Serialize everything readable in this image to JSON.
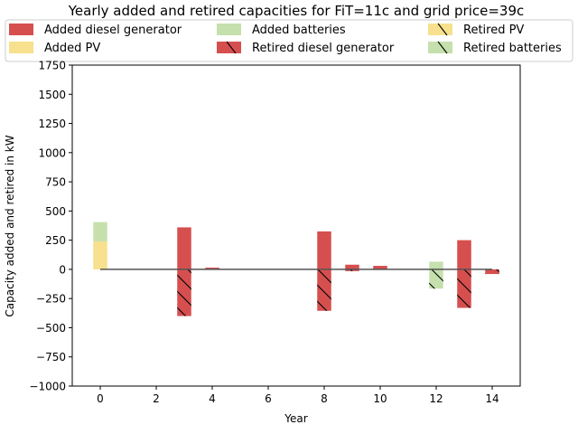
{
  "chart_data": {
    "type": "bar",
    "title": "Yearly added and retired capacities for FiT=11c and grid price=39c",
    "xlabel": "Year",
    "ylabel": "Capacity added and retired in kW",
    "xlim": [
      -1,
      15
    ],
    "ylim": [
      -1000,
      1750
    ],
    "x_ticks": [
      0,
      2,
      4,
      6,
      8,
      10,
      12,
      14
    ],
    "y_ticks": [
      -1000,
      -750,
      -500,
      -250,
      0,
      250,
      500,
      750,
      1000,
      1250,
      1500,
      1750
    ],
    "legend_position": "top",
    "legend": [
      {
        "label": "Added diesel generator",
        "color": "#d64f4f",
        "hatch": false
      },
      {
        "label": "Added PV",
        "color": "#f7e08e",
        "hatch": false
      },
      {
        "label": "Added batteries",
        "color": "#c5e0ad",
        "hatch": false
      },
      {
        "label": "Retired diesel generator",
        "color": "#d64f4f",
        "hatch": true
      },
      {
        "label": "Retired PV",
        "color": "#f7e08e",
        "hatch": true
      },
      {
        "label": "Retired batteries",
        "color": "#c5e0ad",
        "hatch": true
      }
    ],
    "categories": [
      0,
      3,
      4,
      8,
      9,
      10,
      12,
      13,
      14
    ],
    "series": [
      {
        "name": "Added diesel generator",
        "kind": "added",
        "color": "#d64f4f",
        "values": [
          0,
          360,
          15,
          325,
          40,
          30,
          0,
          250,
          0
        ]
      },
      {
        "name": "Added PV",
        "kind": "added",
        "color": "#f7e08e",
        "values": [
          240,
          0,
          0,
          0,
          0,
          0,
          0,
          0,
          0
        ]
      },
      {
        "name": "Added batteries",
        "kind": "added",
        "color": "#c5e0ad",
        "values": [
          165,
          0,
          0,
          0,
          0,
          0,
          65,
          0,
          0
        ]
      },
      {
        "name": "Retired diesel generator",
        "kind": "retired",
        "color": "#d64f4f",
        "values": [
          0,
          -400,
          0,
          -355,
          -15,
          -5,
          0,
          -330,
          -40
        ]
      },
      {
        "name": "Retired PV",
        "kind": "retired",
        "color": "#f7e08e",
        "values": [
          0,
          0,
          0,
          0,
          0,
          0,
          0,
          0,
          0
        ]
      },
      {
        "name": "Retired batteries",
        "kind": "retired",
        "color": "#c5e0ad",
        "values": [
          0,
          0,
          0,
          0,
          0,
          0,
          -165,
          0,
          0
        ]
      }
    ],
    "zero_line_color": "#555555"
  }
}
